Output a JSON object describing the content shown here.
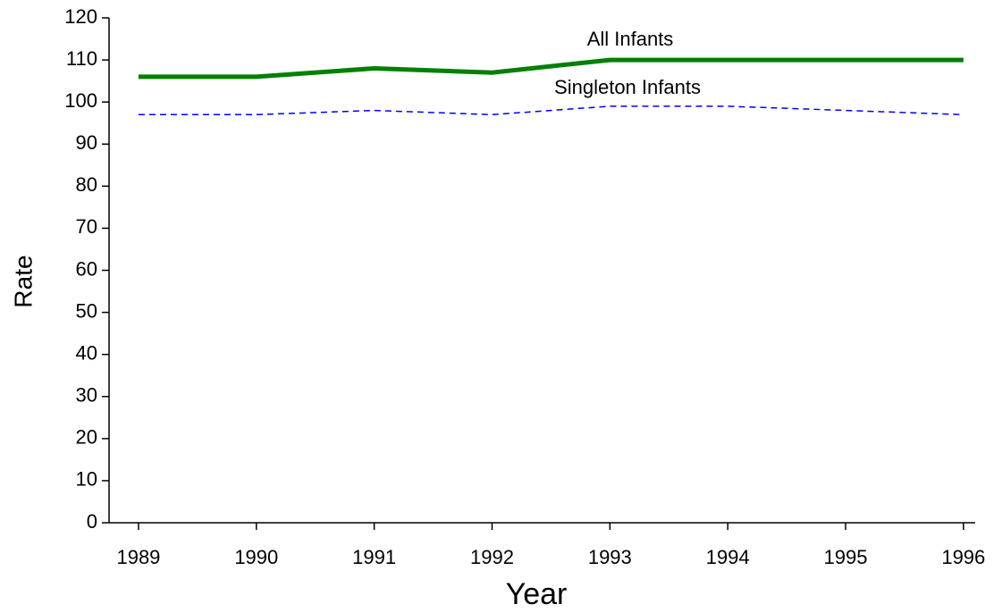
{
  "chart_data": {
    "type": "line",
    "xlabel": "Year",
    "ylabel": "Rate",
    "x": [
      1989,
      1990,
      1991,
      1992,
      1993,
      1994,
      1995,
      1996
    ],
    "series": [
      {
        "name": "All Infants",
        "color": "#008000",
        "values": [
          106,
          106,
          108,
          107,
          110,
          110,
          110,
          110
        ]
      },
      {
        "name": "Singleton Infants",
        "color": "#0000ff",
        "values": [
          97,
          97,
          98,
          97,
          99,
          99,
          98,
          97
        ]
      }
    ],
    "xlim": [
      1988.75,
      1996.1
    ],
    "xticks": [
      1989,
      1990,
      1991,
      1992,
      1993,
      1994,
      1995,
      1996
    ],
    "ylim": [
      0,
      120
    ],
    "yticks": [
      0,
      10,
      20,
      30,
      40,
      50,
      60,
      70,
      80,
      90,
      100,
      110,
      120
    ]
  }
}
